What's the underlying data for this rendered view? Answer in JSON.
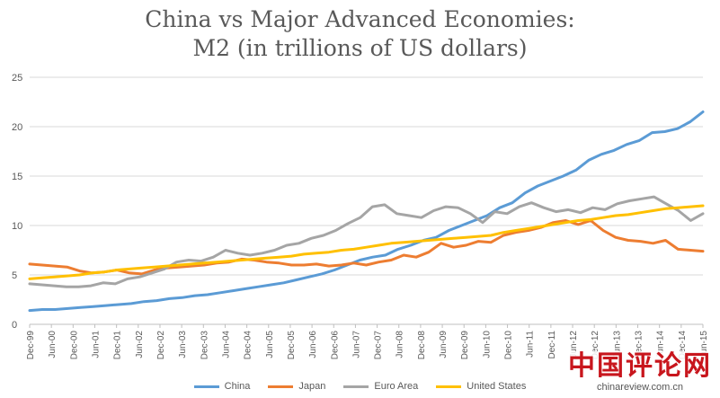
{
  "chart_data": {
    "type": "line",
    "title_line1": "China vs Major Advanced Economies:",
    "title_line2": "M2 (in trillions of US dollars)",
    "xlabel": "",
    "ylabel": "",
    "ylim": [
      0,
      25
    ],
    "y_ticks": [
      "0",
      "5",
      "10",
      "15",
      "20",
      "25"
    ],
    "x_tick_labels": [
      "Dec-99",
      "Jun-00",
      "Dec-00",
      "Jun-01",
      "Dec-01",
      "Jun-02",
      "Dec-02",
      "Jun-03",
      "Dec-03",
      "Jun-04",
      "Dec-04",
      "Jun-05",
      "Dec-05",
      "Jun-06",
      "Dec-06",
      "Jun-07",
      "Dec-07",
      "Jun-08",
      "Dec-08",
      "Jun-09",
      "Dec-09",
      "Jun-10",
      "Dec-10",
      "Jun-11",
      "Dec-11",
      "Jun-12",
      "Dec-12",
      "Jun-13",
      "Dec-13",
      "Jun-14",
      "Dec-14",
      "Jun-15"
    ],
    "grid": "horizontal",
    "legend_position": "bottom",
    "series": [
      {
        "name": "China",
        "color": "#5b9bd5",
        "values": [
          1.4,
          1.5,
          1.5,
          1.6,
          1.7,
          1.8,
          1.9,
          2.0,
          2.1,
          2.3,
          2.4,
          2.6,
          2.7,
          2.9,
          3.0,
          3.2,
          3.4,
          3.6,
          3.8,
          4.0,
          4.2,
          4.5,
          4.8,
          5.1,
          5.5,
          6.0,
          6.5,
          6.8,
          7.0,
          7.6,
          8.0,
          8.5,
          8.8,
          9.5,
          10.0,
          10.5,
          11.0,
          11.8,
          12.3,
          13.3,
          14.0,
          14.5,
          15.0,
          15.6,
          16.6,
          17.2,
          17.6,
          18.2,
          18.6,
          19.4,
          19.5,
          19.8,
          20.5,
          21.5
        ]
      },
      {
        "name": "Japan",
        "color": "#ed7d31",
        "values": [
          6.1,
          6.0,
          5.9,
          5.8,
          5.4,
          5.2,
          5.3,
          5.5,
          5.2,
          5.1,
          5.5,
          5.7,
          5.8,
          5.9,
          6.0,
          6.2,
          6.3,
          6.6,
          6.5,
          6.3,
          6.2,
          6.0,
          6.0,
          6.1,
          5.9,
          6.0,
          6.2,
          6.0,
          6.3,
          6.5,
          7.0,
          6.8,
          7.3,
          8.2,
          7.8,
          8.0,
          8.4,
          8.3,
          9.0,
          9.3,
          9.5,
          9.8,
          10.3,
          10.5,
          10.1,
          10.5,
          9.5,
          8.8,
          8.5,
          8.4,
          8.2,
          8.5,
          7.6,
          7.5,
          7.4
        ]
      },
      {
        "name": "Euro Area",
        "color": "#a5a5a5",
        "values": [
          4.1,
          4.0,
          3.9,
          3.8,
          3.8,
          3.9,
          4.2,
          4.1,
          4.6,
          4.8,
          5.2,
          5.6,
          6.3,
          6.5,
          6.4,
          6.8,
          7.5,
          7.2,
          7.0,
          7.2,
          7.5,
          8.0,
          8.2,
          8.7,
          9.0,
          9.5,
          10.2,
          10.8,
          11.9,
          12.1,
          11.2,
          11.0,
          10.8,
          11.5,
          11.9,
          11.8,
          11.2,
          10.3,
          11.4,
          11.2,
          11.9,
          12.3,
          11.8,
          11.4,
          11.6,
          11.3,
          11.8,
          11.6,
          12.2,
          12.5,
          12.7,
          12.9,
          12.2,
          11.5,
          10.5,
          11.2
        ]
      },
      {
        "name": "United States",
        "color": "#ffc000",
        "values": [
          4.6,
          4.7,
          4.8,
          4.9,
          5.0,
          5.2,
          5.3,
          5.5,
          5.6,
          5.7,
          5.8,
          5.9,
          6.0,
          6.1,
          6.2,
          6.3,
          6.4,
          6.5,
          6.6,
          6.7,
          6.8,
          6.9,
          7.1,
          7.2,
          7.3,
          7.5,
          7.6,
          7.8,
          8.0,
          8.2,
          8.3,
          8.4,
          8.5,
          8.6,
          8.7,
          8.8,
          8.9,
          9.0,
          9.3,
          9.5,
          9.7,
          9.9,
          10.1,
          10.3,
          10.5,
          10.6,
          10.8,
          11.0,
          11.1,
          11.3,
          11.5,
          11.7,
          11.8,
          11.9,
          12.0
        ]
      }
    ]
  },
  "watermark": {
    "logo_text": "中国评论网",
    "url": "chinareview.com.cn"
  }
}
